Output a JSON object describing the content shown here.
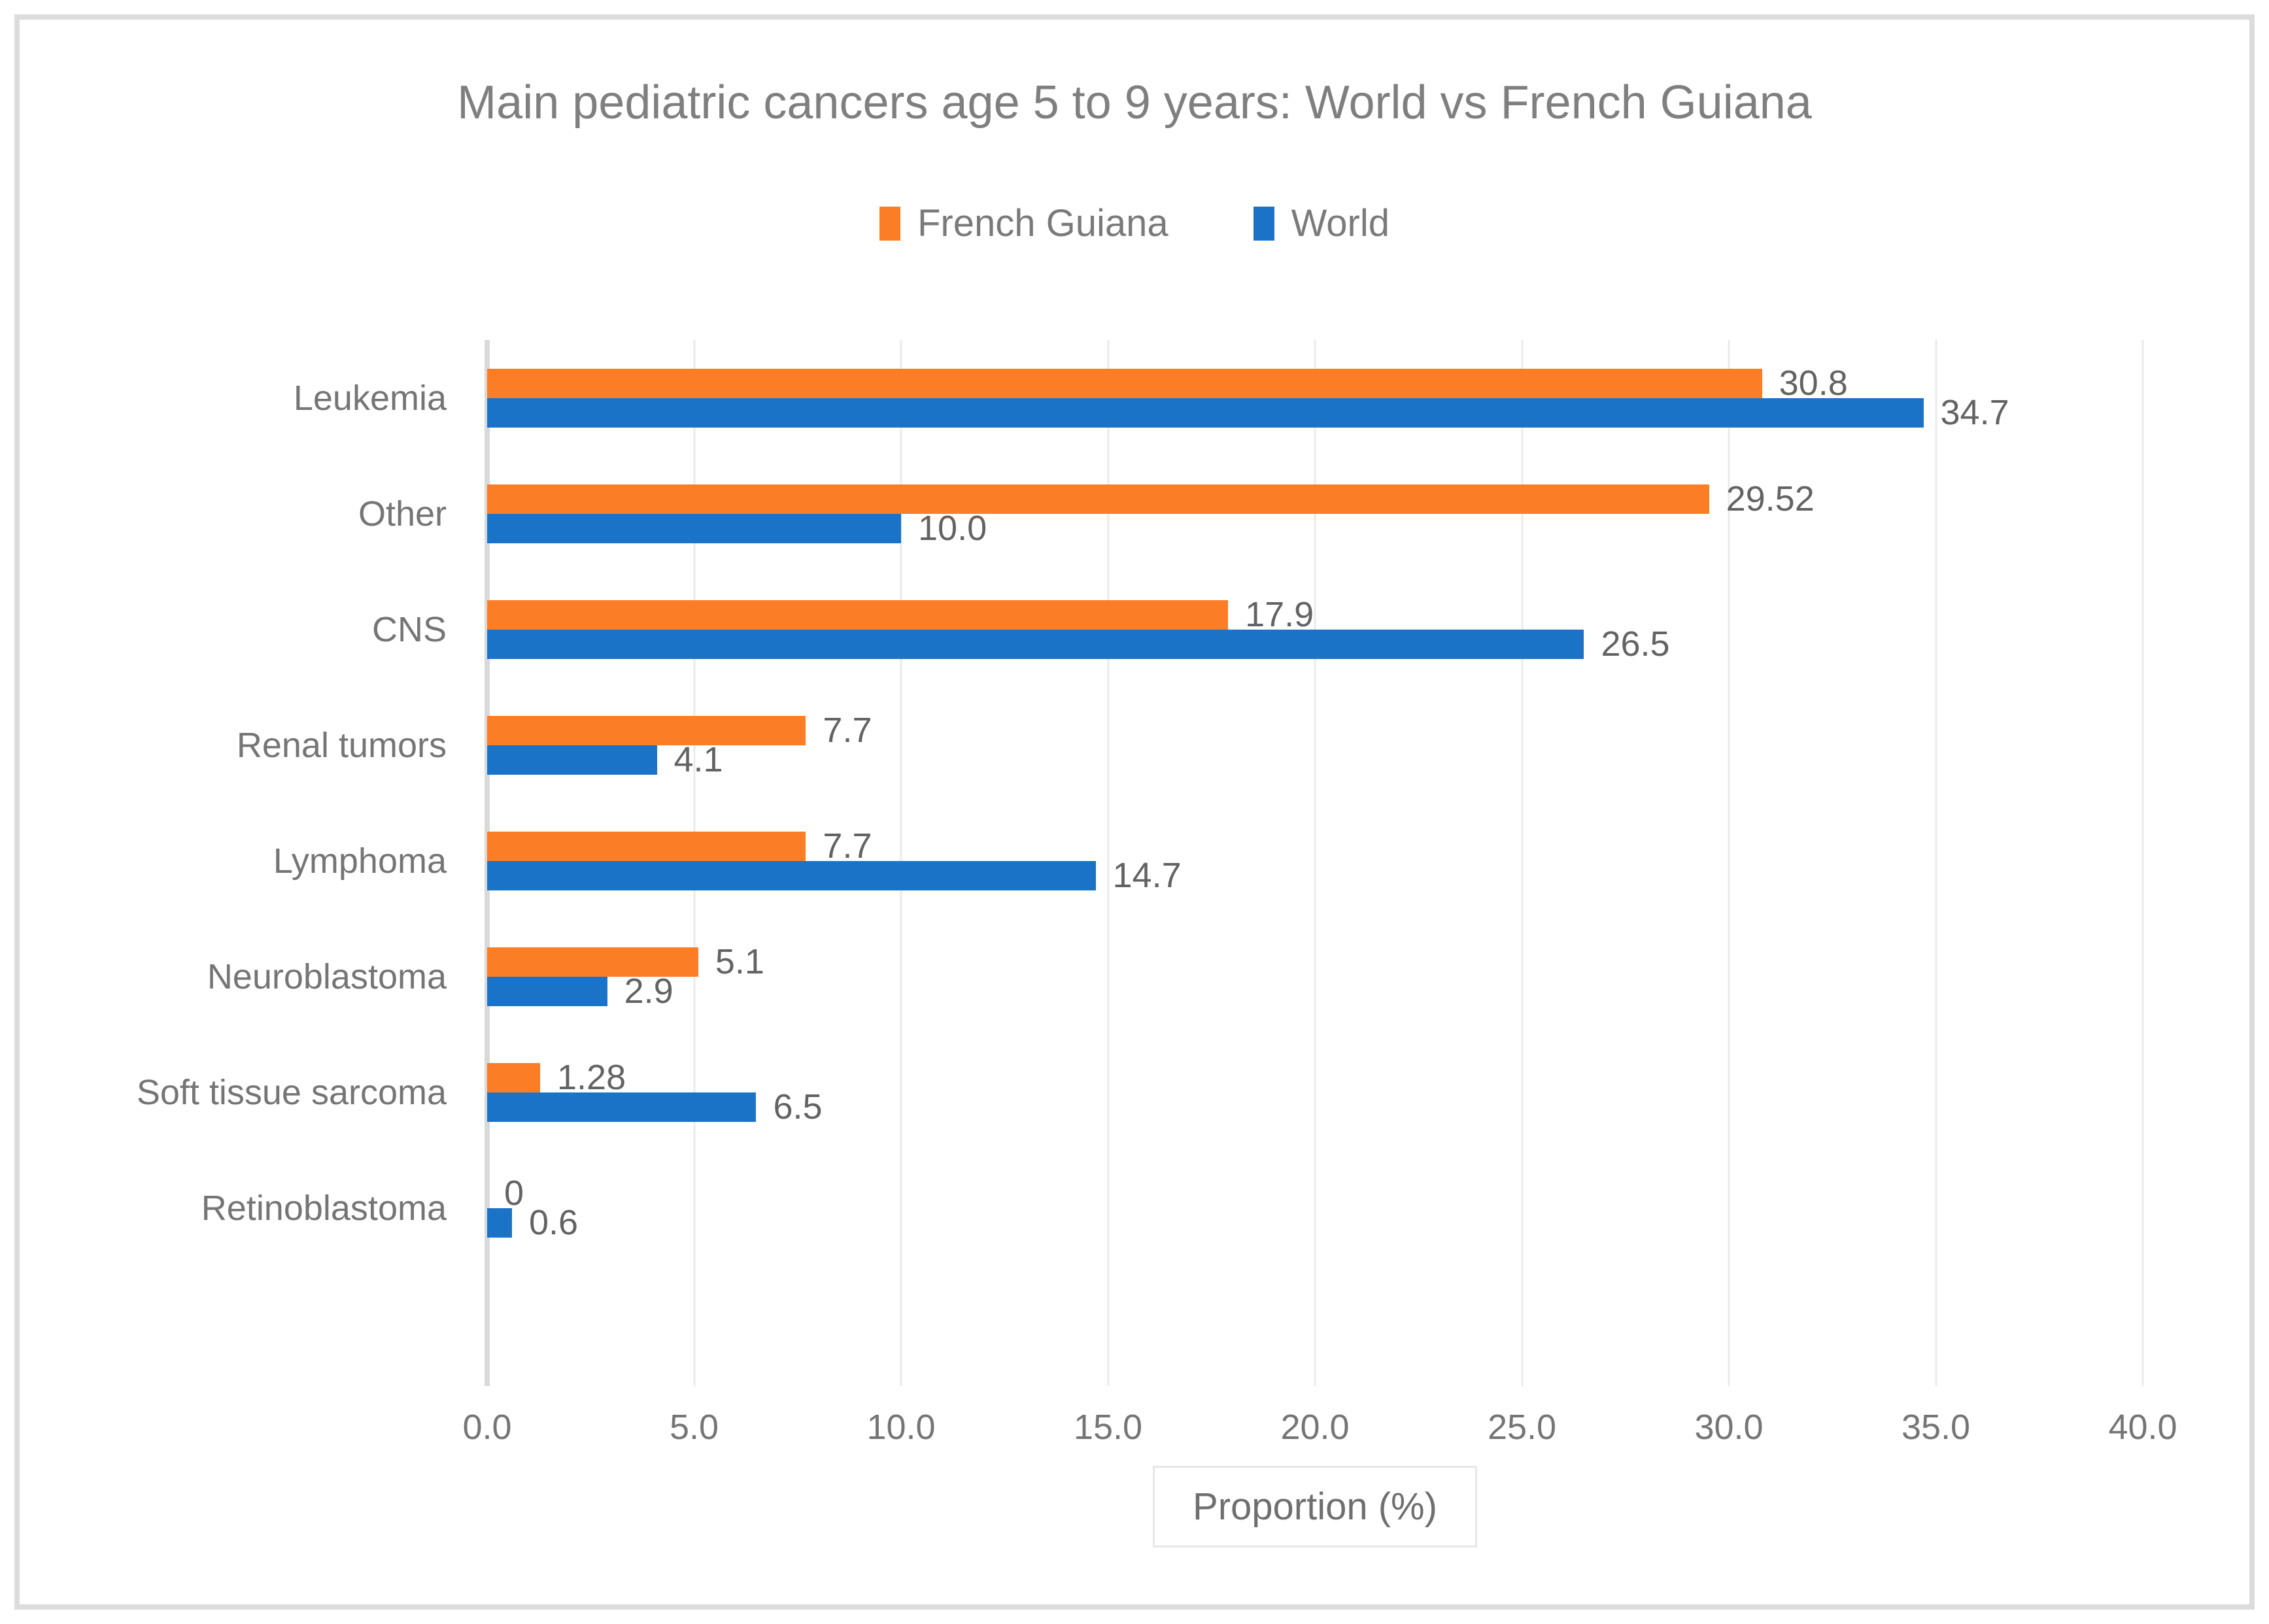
{
  "title": "Main pediatric cancers age 5 to 9 years: World vs French Guiana",
  "colors": {
    "french_guiana": "#fb7e27",
    "world": "#1b73c8",
    "text_gray": "#7f7f7f",
    "gridline": "#ebebeb",
    "frame_border": "#dcdcdc"
  },
  "chart_data": {
    "type": "bar",
    "orientation": "horizontal",
    "title": "Main pediatric cancers age 5 to 9 years: World vs French Guiana",
    "categories": [
      "Leukemia",
      "Other",
      "CNS",
      "Renal tumors",
      "Lymphoma",
      "Neuroblastoma",
      "Soft tissue sarcoma",
      "Retinoblastoma"
    ],
    "series": [
      {
        "name": "French Guiana",
        "color": "#fb7e27",
        "values": [
          30.8,
          29.52,
          17.9,
          7.7,
          7.7,
          5.1,
          1.28,
          0
        ],
        "labels": [
          "30.8",
          "29.52",
          "17.9",
          "7.7",
          "7.7",
          "5.1",
          "1.28",
          "0"
        ]
      },
      {
        "name": "World",
        "color": "#1b73c8",
        "values": [
          34.7,
          10.0,
          26.5,
          4.1,
          14.7,
          2.9,
          6.5,
          0.6
        ],
        "labels": [
          "34.7",
          "10.0",
          "26.5",
          "4.1",
          "14.7",
          "2.9",
          "6.5",
          "0.6"
        ]
      }
    ],
    "xlabel": "Proportion (%)",
    "ylabel": "",
    "xlim": [
      0,
      40
    ],
    "x_ticks": [
      "0.0",
      "5.0",
      "10.0",
      "15.0",
      "20.0",
      "25.0",
      "30.0",
      "35.0",
      "40.0"
    ],
    "grid": "vertical",
    "legend_position": "top-center",
    "data_labels": true
  }
}
